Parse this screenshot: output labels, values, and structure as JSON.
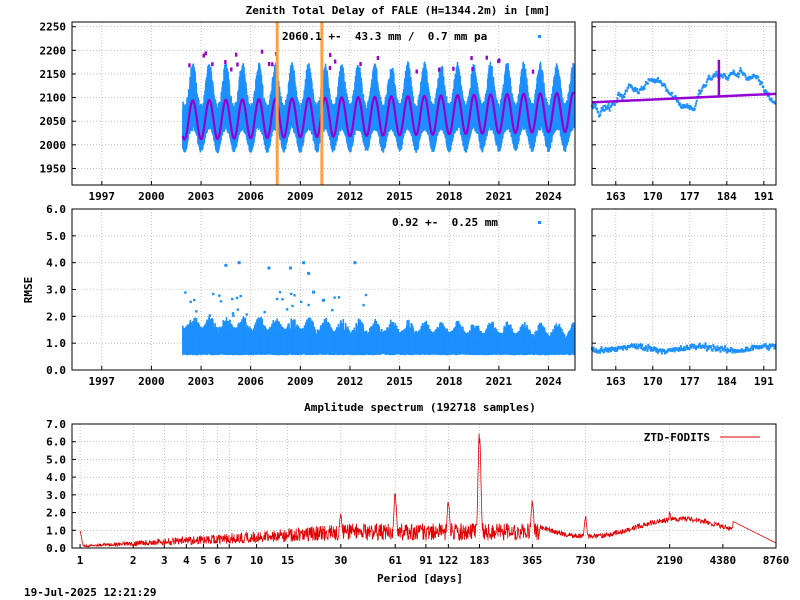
{
  "colors": {
    "points": "#1e90ff",
    "model": "#9400d3",
    "event": "#ffa040",
    "spectrum": "#e00000",
    "grid": "#a0a0a0"
  },
  "timestamp": "19-Jul-2025 12:21:29",
  "chart_data": [
    {
      "id": "ztd",
      "type": "scatter",
      "title": "Zenith Total Delay of FALE (H=1344.2m) in [mm]",
      "annotation": "2060.1 +-  43.3 mm /  0.7 mm pa",
      "xlim": [
        1995.2,
        2025.6
      ],
      "ylim": [
        1915,
        2260
      ],
      "x_ticks": [
        "1997",
        "2000",
        "2003",
        "2006",
        "2009",
        "2012",
        "2015",
        "2018",
        "2021",
        "2024"
      ],
      "y_ticks": [
        "1950",
        "2000",
        "2050",
        "2100",
        "2150",
        "2200",
        "2250"
      ],
      "data_start": 2001.9,
      "data_end": 2025.55,
      "mean": 2060.1,
      "annual_amplitude": 43.3,
      "trend_per_year": 0.7,
      "event_lines": [
        2007.6,
        2010.3
      ],
      "series": [
        {
          "role": "observations",
          "color": "points"
        },
        {
          "role": "model",
          "color": "model"
        }
      ]
    },
    {
      "id": "ztd_zoom",
      "type": "scatter",
      "xlim": [
        158.5,
        193.3
      ],
      "ylim": [
        1915,
        2260
      ],
      "x_ticks": [
        "163",
        "170",
        "177",
        "184",
        "191"
      ],
      "trend": [
        [
          158.5,
          2090
        ],
        [
          193.3,
          2108
        ]
      ]
    },
    {
      "id": "rmse",
      "type": "scatter",
      "ylabel": "RMSE",
      "annotation": "0.92 +-  0.25 mm",
      "xlim": [
        1995.2,
        2025.6
      ],
      "ylim": [
        0,
        6
      ],
      "x_ticks": [
        "1997",
        "2000",
        "2003",
        "2006",
        "2009",
        "2012",
        "2015",
        "2018",
        "2021",
        "2024"
      ],
      "y_ticks": [
        "0.0",
        "1.0",
        "2.0",
        "3.0",
        "4.0",
        "5.0",
        "6.0"
      ],
      "data_start": 2001.9,
      "data_end": 2025.55,
      "outliers": [
        [
          2004.5,
          3.9
        ],
        [
          2005.3,
          4.0
        ],
        [
          2007.1,
          3.8
        ],
        [
          2008.4,
          3.8
        ],
        [
          2009.2,
          4.0
        ],
        [
          2009.5,
          3.6
        ],
        [
          2012.3,
          4.0
        ],
        [
          2010.4,
          2.6
        ],
        [
          2009.8,
          2.9
        ]
      ],
      "series": [
        {
          "role": "rmse",
          "color": "points"
        }
      ]
    },
    {
      "id": "rmse_zoom",
      "type": "scatter",
      "xlim": [
        158.5,
        193.3
      ],
      "ylim": [
        0,
        6
      ],
      "x_ticks": [
        "163",
        "170",
        "177",
        "184",
        "191"
      ],
      "level": 0.8
    },
    {
      "id": "spectrum",
      "type": "line",
      "title": "Amplitude spectrum (192718 samples)",
      "xlabel": "Period [days]",
      "xscale": "log",
      "xlim": [
        0.9,
        8760
      ],
      "ylim": [
        0,
        7
      ],
      "x_ticks": [
        "1",
        "2",
        "3",
        "4",
        "5",
        "6",
        "7",
        "10",
        "15",
        "30",
        "61",
        "91",
        "122",
        "183",
        "365",
        "730",
        "2190",
        "4380",
        "8760"
      ],
      "y_ticks": [
        "0.0",
        "1.0",
        "2.0",
        "3.0",
        "4.0",
        "5.0",
        "6.0",
        "7.0"
      ],
      "legend": "top-right",
      "series": [
        {
          "name": "ZTD-FODITS",
          "color": "spectrum",
          "peaks": [
            [
              1,
              1.0
            ],
            [
              30,
              2.0
            ],
            [
              61,
              3.2
            ],
            [
              122,
              2.8
            ],
            [
              183,
              6.8
            ],
            [
              365,
              2.8
            ],
            [
              730,
              1.9
            ],
            [
              2190,
              2.1
            ],
            [
              8760,
              0.2
            ]
          ]
        }
      ]
    }
  ]
}
